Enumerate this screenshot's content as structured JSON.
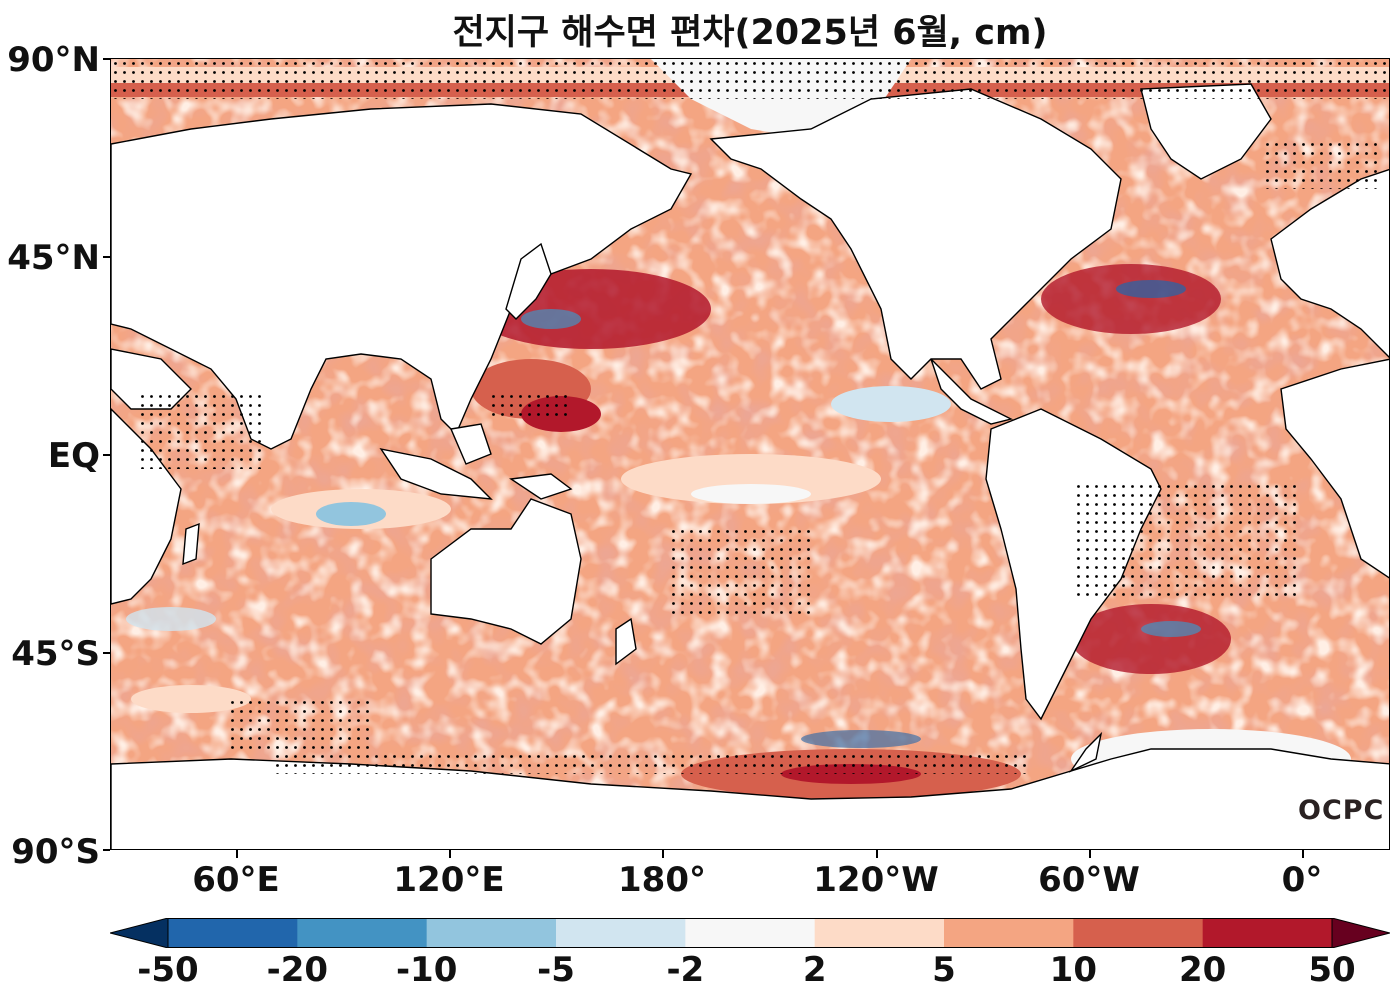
{
  "title": "전지구 해수면 편차(2025년 6월, cm)",
  "logo_text": "OCPC",
  "y_axis_labels": [
    "90°N",
    "45°N",
    "EQ",
    "45°S",
    "90°S"
  ],
  "x_axis_labels": [
    "60°E",
    "120°E",
    "180°",
    "120°W",
    "60°W",
    "0°"
  ],
  "colorbar": {
    "levels": [
      "-50",
      "-20",
      "-10",
      "-5",
      "-2",
      "2",
      "5",
      "10",
      "20",
      "50"
    ],
    "colors": [
      "#053061",
      "#2166ac",
      "#4393c3",
      "#92c5de",
      "#d1e5f0",
      "#f7f7f7",
      "#fddbc7",
      "#f4a582",
      "#d6604d",
      "#b2182b",
      "#67001f"
    ]
  },
  "map": {
    "land_color": "#ffffff",
    "ocean_dominant_color": "#f4a582",
    "stippling": "black dots mark significant anomalies"
  }
}
